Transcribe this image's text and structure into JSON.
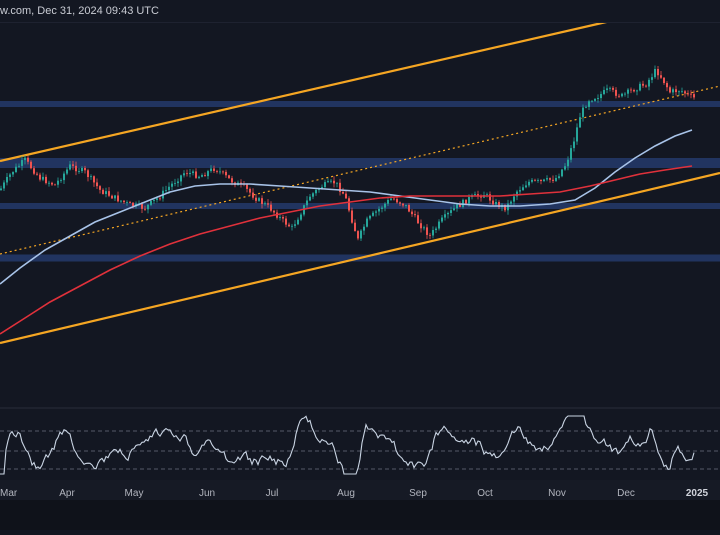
{
  "header": {
    "text": "w.com, Dec 31, 2024 09:43 UTC"
  },
  "colors": {
    "background": "#131722",
    "panel_bg": "#161a25",
    "axis_bg": "#161a25",
    "bull": "#26a69a",
    "bear": "#ef5350",
    "band": "#243a6b",
    "channel": "#f5a623",
    "midline": "#f5a623",
    "ma_fast": "#a8c3e8",
    "ma_slow": "#e0313b",
    "rsi": "#c9d4e3",
    "rsi_level": "#6b7080"
  },
  "chart_data": [
    {
      "type": "candlestick",
      "x_labels": [
        "Mar",
        "Apr",
        "May",
        "Jun",
        "Jul",
        "Aug",
        "Sep",
        "Oct",
        "Nov",
        "Dec",
        "2025"
      ],
      "support_resistance_zones": 5,
      "ascending_channel": true,
      "dotted_midline": true,
      "moving_averages": [
        "fast",
        "slow"
      ],
      "grid": false,
      "legend": "none"
    },
    {
      "type": "line",
      "indicator": "oscillator",
      "levels": [
        "upper",
        "middle",
        "lower"
      ],
      "grid": false
    }
  ]
}
